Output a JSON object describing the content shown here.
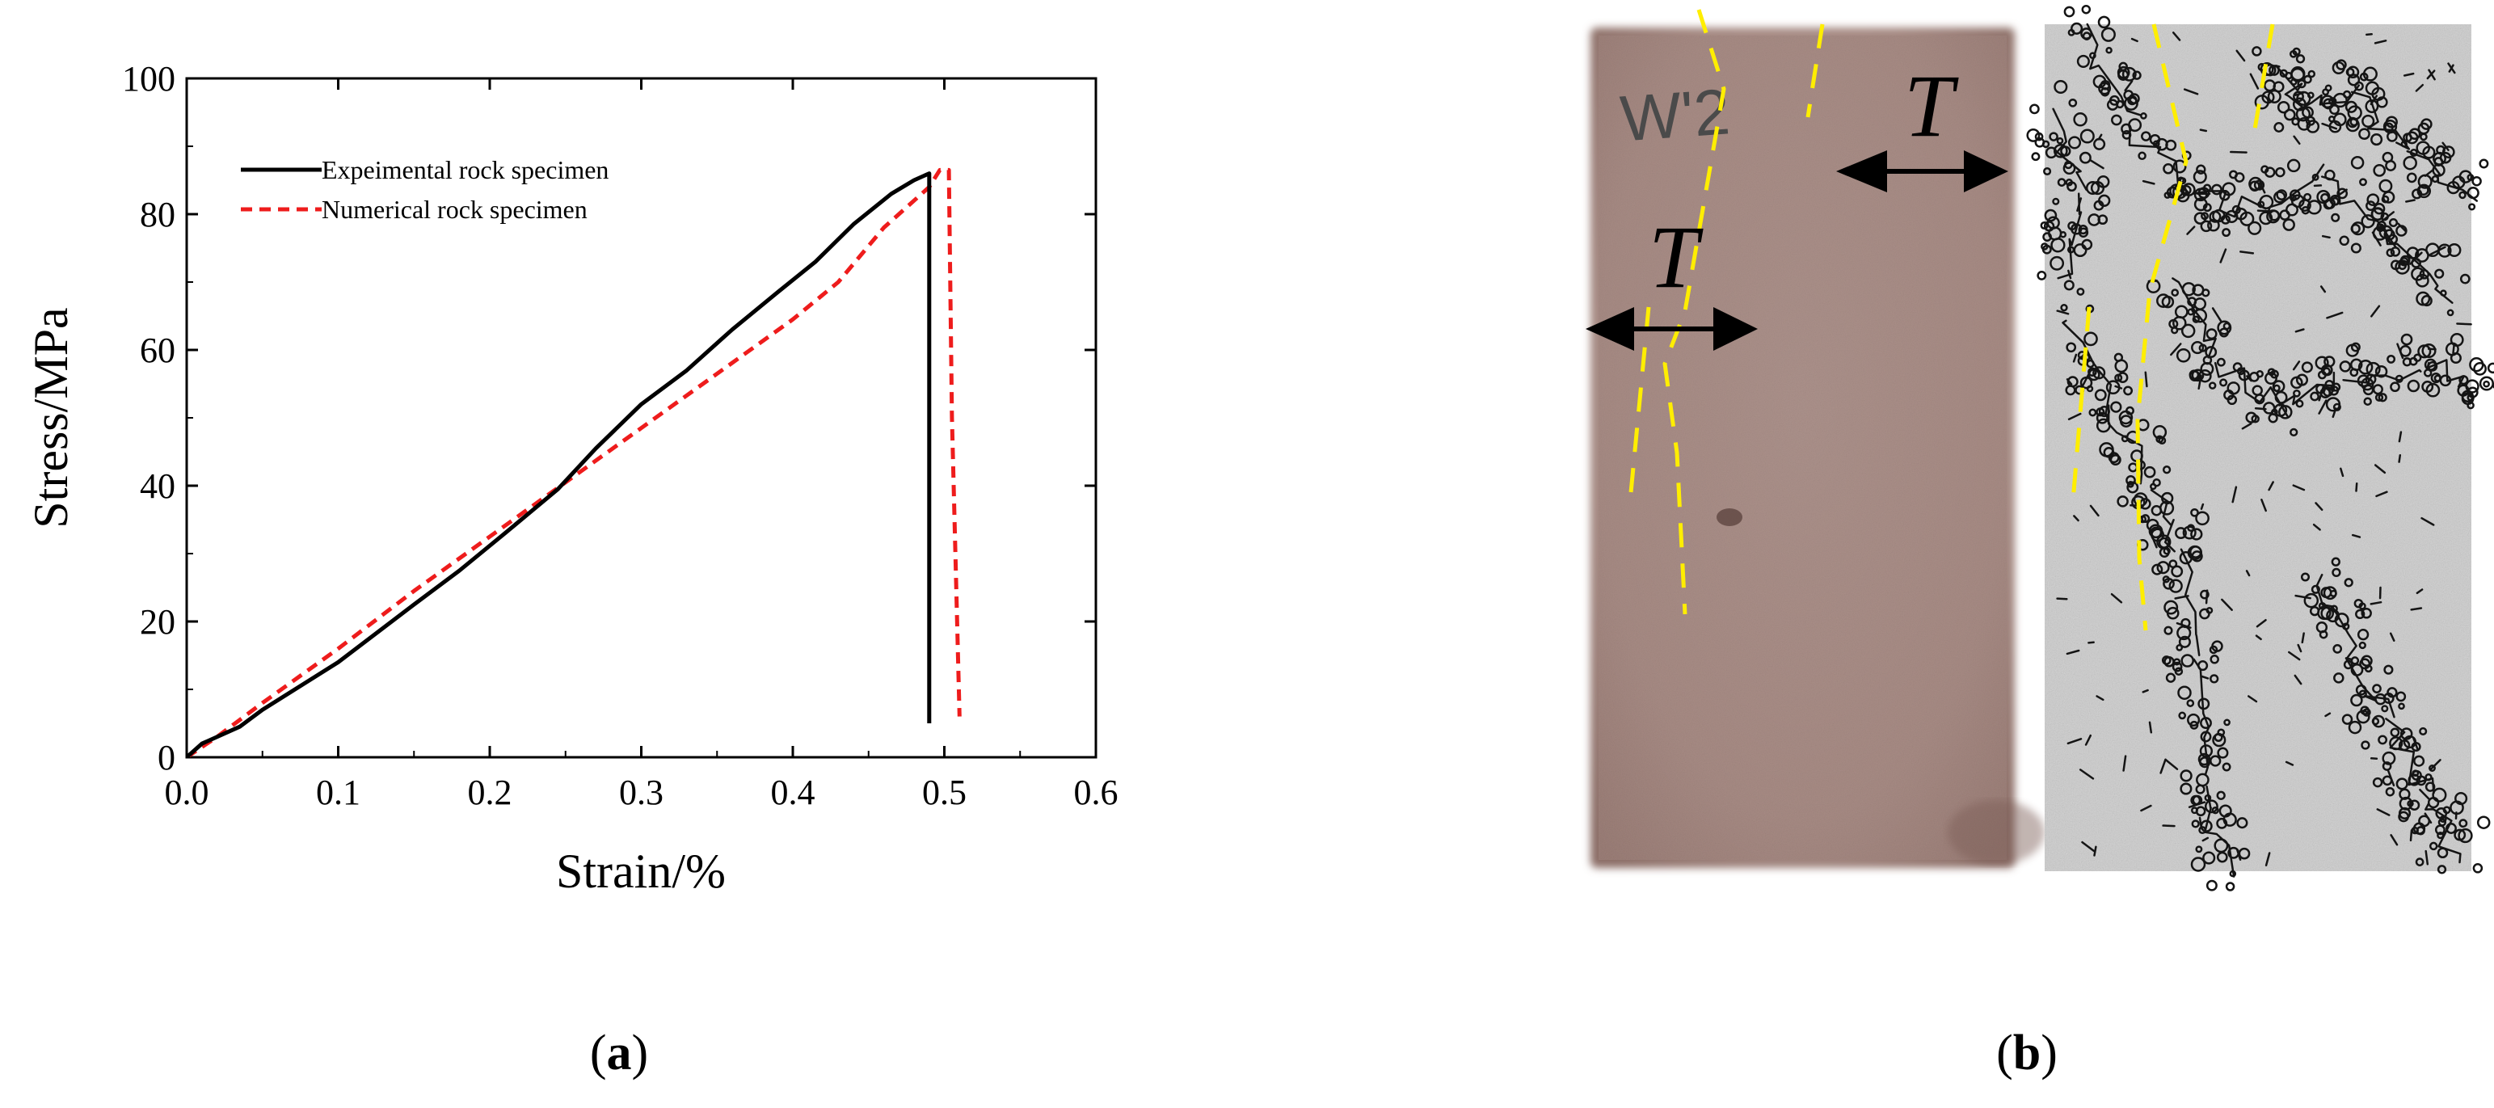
{
  "panels": {
    "a_label": "a",
    "b_label": "b"
  },
  "chart_data": {
    "type": "line",
    "xlabel": "Strain/%",
    "ylabel": "Stress/MPa",
    "xlim": [
      0,
      0.6
    ],
    "ylim": [
      0,
      100
    ],
    "xticks": [
      "0.0",
      "0.1",
      "0.2",
      "0.3",
      "0.4",
      "0.5",
      "0.6"
    ],
    "yticks": [
      "0",
      "20",
      "40",
      "60",
      "80",
      "100"
    ],
    "grid": false,
    "legend": "top-left",
    "series": [
      {
        "name": "Expeimental rock specimen",
        "color": "#000000",
        "style": "solid",
        "x": [
          0.0,
          0.01,
          0.035,
          0.05,
          0.1,
          0.15,
          0.18,
          0.21,
          0.245,
          0.27,
          0.3,
          0.33,
          0.36,
          0.39,
          0.415,
          0.44,
          0.465,
          0.48,
          0.49,
          0.49,
          0.49
        ],
        "y": [
          0,
          2,
          4.5,
          7,
          14,
          22.5,
          27.5,
          33,
          39.5,
          45.5,
          52,
          57,
          63,
          68.5,
          73,
          78.5,
          83,
          85,
          86,
          58,
          5
        ]
      },
      {
        "name": "Numerical rock specimen",
        "color": "#ee1c1c",
        "style": "dashed",
        "x": [
          0.0,
          0.02,
          0.05,
          0.1,
          0.15,
          0.2,
          0.25,
          0.3,
          0.35,
          0.4,
          0.43,
          0.46,
          0.49,
          0.497,
          0.503,
          0.505,
          0.51
        ],
        "y": [
          0,
          3,
          8,
          16,
          24.5,
          32.5,
          40.5,
          48.5,
          56.5,
          64.5,
          70,
          78,
          84,
          86.5,
          86.5,
          50,
          6
        ]
      }
    ]
  },
  "figure_b": {
    "left_panel": {
      "specimen_mark": "W'2",
      "arrow_label_upper": "T",
      "arrow_label_lower": "T"
    },
    "colors": {
      "rock": "#a98d86",
      "rock_edge": "#8d6e69",
      "sim_bg": "#d9d9d9",
      "crack": "#141414",
      "fracture_guide": "#ffee00"
    }
  }
}
